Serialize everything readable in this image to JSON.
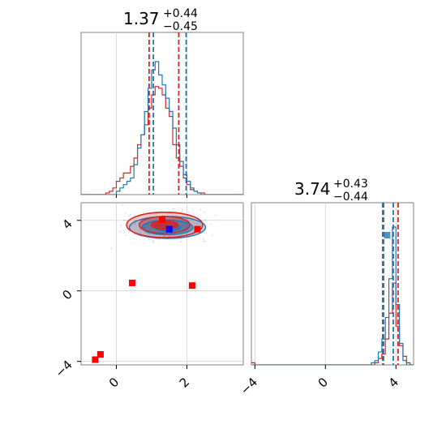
{
  "chart_data": {
    "type": "corner",
    "title_x": {
      "value": "1.37",
      "upper": "+0.44",
      "lower": "−0.45"
    },
    "title_y": {
      "value": "3.74",
      "upper": "+0.43",
      "lower": "−0.44"
    },
    "x_range": [
      -1,
      3.6
    ],
    "y_range": [
      -4.2,
      5
    ],
    "x_ticks": [
      0,
      2
    ],
    "x_tick_labels": [
      "0",
      "2"
    ],
    "y_ticks": [
      -4,
      0,
      4
    ],
    "y_tick_labels": [
      "−4",
      "0",
      "4"
    ],
    "grid": true,
    "colors": {
      "series_a": "#1f77b4",
      "series_b": "#d62728",
      "frame": "#808080",
      "grid": "#d0d0d0"
    },
    "hist_x": {
      "bin_start": -1.0,
      "bin_width": 0.1,
      "series_b_counts": [
        0,
        0,
        0,
        0,
        0,
        0,
        0,
        1,
        2,
        4,
        8,
        10,
        13,
        13,
        17,
        22,
        30,
        36,
        42,
        52,
        60,
        65,
        64,
        60,
        52,
        47,
        30,
        22,
        17,
        10,
        6,
        3,
        2,
        1,
        1,
        0,
        0,
        0,
        0,
        0,
        0,
        0,
        0,
        0,
        0,
        0
      ],
      "series_a_counts": [
        0,
        0,
        0,
        0,
        0,
        0,
        0,
        0,
        0,
        0,
        2,
        4,
        6,
        8,
        10,
        18,
        28,
        36,
        50,
        64,
        75,
        80,
        72,
        66,
        58,
        50,
        40,
        30,
        20,
        12,
        8,
        4,
        2,
        1,
        0,
        0,
        0,
        0,
        0,
        0,
        0,
        0,
        0,
        0,
        0,
        0
      ],
      "series_a_quantiles": [
        1.05,
        1.98
      ],
      "series_b_quantiles": [
        0.93,
        1.77
      ]
    },
    "hist_y": {
      "bin_start": -4.2,
      "bin_width": 0.2,
      "series_b_counts": [
        1,
        0,
        0,
        0,
        0,
        0,
        0,
        0,
        0,
        0,
        0,
        0,
        0,
        0,
        0,
        0,
        0,
        0,
        0,
        0,
        0,
        0,
        0,
        0,
        0,
        0,
        0,
        0,
        0,
        0,
        0,
        0,
        0,
        0,
        0,
        1,
        3,
        5,
        12,
        24,
        38,
        18,
        9,
        4,
        1,
        0
      ],
      "series_a_counts": [
        0,
        0,
        0,
        0,
        0,
        0,
        0,
        0,
        0,
        0,
        0,
        0,
        0,
        0,
        0,
        0,
        0,
        0,
        0,
        0,
        0,
        0,
        0,
        0,
        0,
        0,
        0,
        0,
        0,
        0,
        0,
        0,
        0,
        0,
        1,
        2,
        6,
        12,
        22,
        40,
        64,
        28,
        10,
        2,
        0,
        0
      ],
      "series_a_quantiles": [
        3.3,
        3.85
      ],
      "series_b_quantiles": [
        3.25,
        4.12
      ]
    },
    "contours": {
      "series_b": {
        "center": [
          1.37,
          3.74
        ],
        "sigma": [
          0.45,
          0.3
        ],
        "levels": [
          0.8,
          1.6,
          2.4
        ]
      },
      "series_a": {
        "center": [
          1.45,
          3.6
        ],
        "sigma": [
          0.45,
          0.26
        ],
        "levels": [
          0.8,
          1.6,
          2.4
        ]
      }
    },
    "markers": {
      "red_squares": [
        [
          -0.45,
          -3.6
        ],
        [
          -0.6,
          -3.9
        ],
        [
          0.45,
          0.45
        ],
        [
          2.15,
          0.3
        ],
        [
          1.3,
          4.05
        ],
        [
          2.3,
          3.5
        ]
      ],
      "blue_squares": [
        [
          1.5,
          3.5
        ]
      ]
    }
  }
}
